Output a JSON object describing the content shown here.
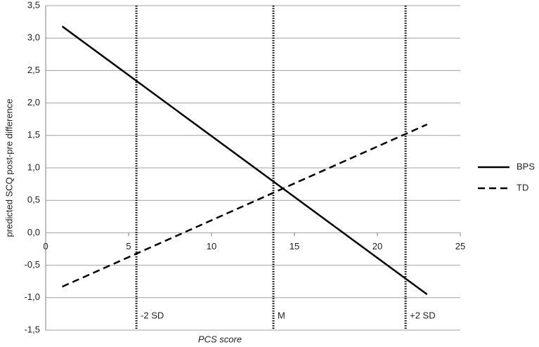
{
  "chart_data": {
    "type": "line",
    "xlabel": "PCS score",
    "ylabel": "predicted SCQ post-pre difference",
    "xlim": [
      0,
      25
    ],
    "xticks": [
      0,
      5,
      10,
      15,
      20,
      25
    ],
    "ylim": [
      -1.5,
      3.5
    ],
    "yticks": [
      {
        "value": -1.5,
        "label": "-1,5"
      },
      {
        "value": -1,
        "label": "-1,0"
      },
      {
        "value": -0.5,
        "label": "-0,5"
      },
      {
        "value": 0,
        "label": "0,0"
      },
      {
        "value": 0.5,
        "label": "0,5"
      },
      {
        "value": 1,
        "label": "1,0"
      },
      {
        "value": 1.5,
        "label": "1,5"
      },
      {
        "value": 2,
        "label": "2,0"
      },
      {
        "value": 2.5,
        "label": "2,5"
      },
      {
        "value": 3,
        "label": "3,0"
      },
      {
        "value": 3.5,
        "label": "3,5"
      }
    ],
    "grid": true,
    "legend": "right",
    "series": [
      {
        "name": "BPS",
        "color": "#000000",
        "dash": "solid",
        "x": [
          1,
          23
        ],
        "values": [
          3.18,
          -0.95
        ]
      },
      {
        "name": "TD",
        "color": "#000000",
        "dash": "dashed",
        "x": [
          1,
          23
        ],
        "values": [
          -0.83,
          1.67
        ]
      }
    ],
    "reference_lines": [
      {
        "x": 5.47,
        "label": "-2 SD"
      },
      {
        "x": 13.73,
        "label": "M"
      },
      {
        "x": 21.7,
        "label": "+2 SD"
      }
    ]
  }
}
